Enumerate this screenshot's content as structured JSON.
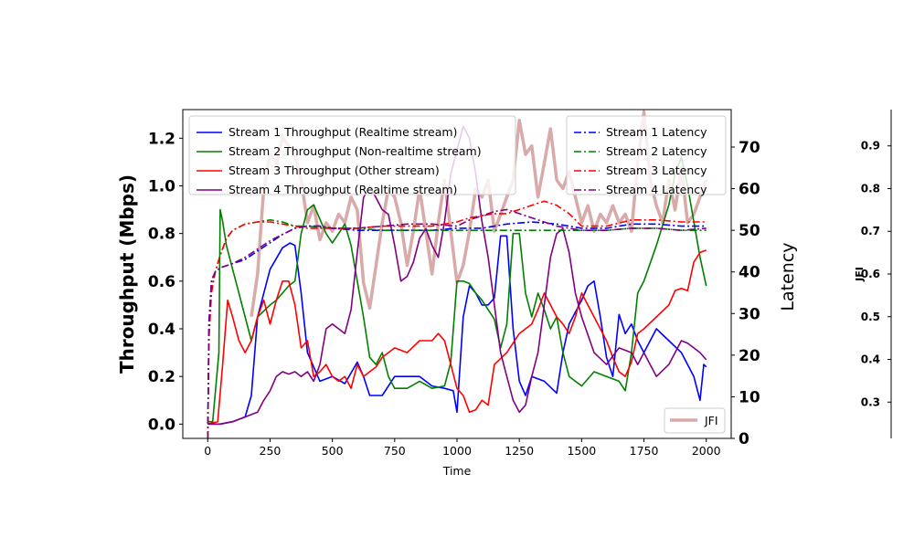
{
  "chart_data": {
    "type": "line",
    "title": "",
    "xlabel": "Time",
    "ylabel_left": "Throughput (Mbps)",
    "ylabel_right": "Latency",
    "ylabel_third": "JFI",
    "xlim": [
      -100,
      2100
    ],
    "ylim_left": [
      -0.06,
      1.32
    ],
    "ylim_right": [
      0,
      79
    ],
    "ylim_third": [
      0.215,
      0.985
    ],
    "x_ticks": [
      0,
      250,
      500,
      750,
      1000,
      1250,
      1500,
      1750,
      2000
    ],
    "y_ticks_left": [
      0.0,
      0.2,
      0.4,
      0.6,
      0.8,
      1.0,
      1.2
    ],
    "y_ticks_left_labels": [
      "0.0",
      "0.2",
      "0.4",
      "0.6",
      "0.8",
      "1.0",
      "1.2"
    ],
    "y_ticks_right": [
      0,
      10,
      20,
      30,
      40,
      50,
      60,
      70
    ],
    "y_ticks_third": [
      0.3,
      0.4,
      0.5,
      0.6,
      0.7,
      0.8,
      0.9
    ],
    "grid": false,
    "legend_left_position": "upper-left",
    "legend_right_position": "upper-right",
    "legend_jfi_position": "lower-right",
    "throughput_series": [
      {
        "name": "Stream 1 Throughput (Realtime stream)",
        "color": "#0000ff",
        "x": [
          0,
          50,
          100,
          150,
          175,
          200,
          250,
          300,
          330,
          350,
          375,
          400,
          450,
          500,
          550,
          600,
          625,
          650,
          700,
          750,
          800,
          850,
          900,
          950,
          985,
          1000,
          1025,
          1050,
          1075,
          1100,
          1125,
          1150,
          1175,
          1200,
          1225,
          1250,
          1275,
          1300,
          1350,
          1400,
          1425,
          1450,
          1500,
          1525,
          1550,
          1575,
          1600,
          1625,
          1650,
          1675,
          1700,
          1725,
          1750,
          1800,
          1850,
          1900,
          1950,
          1975,
          1990,
          2000
        ],
        "y": [
          0.0,
          0.0,
          0.01,
          0.03,
          0.12,
          0.45,
          0.65,
          0.74,
          0.76,
          0.75,
          0.55,
          0.3,
          0.18,
          0.2,
          0.17,
          0.26,
          0.2,
          0.12,
          0.12,
          0.2,
          0.2,
          0.2,
          0.16,
          0.15,
          0.14,
          0.05,
          0.45,
          0.58,
          0.55,
          0.5,
          0.5,
          0.53,
          0.79,
          0.79,
          0.4,
          0.18,
          0.12,
          0.2,
          0.18,
          0.13,
          0.3,
          0.42,
          0.52,
          0.58,
          0.6,
          0.45,
          0.28,
          0.2,
          0.46,
          0.38,
          0.42,
          0.35,
          0.3,
          0.4,
          0.35,
          0.3,
          0.2,
          0.1,
          0.25,
          0.24
        ]
      },
      {
        "name": "Stream 2 Throughput (Non-realtime stream)",
        "color": "#008000",
        "x": [
          0,
          20,
          45,
          50,
          60,
          75,
          100,
          125,
          150,
          175,
          200,
          250,
          275,
          300,
          325,
          350,
          375,
          400,
          425,
          450,
          475,
          500,
          525,
          550,
          575,
          600,
          625,
          650,
          675,
          700,
          725,
          750,
          800,
          850,
          900,
          950,
          975,
          1000,
          1025,
          1050,
          1075,
          1100,
          1125,
          1150,
          1175,
          1200,
          1225,
          1250,
          1275,
          1300,
          1325,
          1350,
          1375,
          1400,
          1425,
          1450,
          1475,
          1500,
          1550,
          1600,
          1650,
          1675,
          1700,
          1725,
          1750,
          1800,
          1850,
          1875,
          1900,
          1925,
          1950,
          1975,
          2000
        ],
        "y": [
          0.01,
          0.01,
          0.3,
          0.9,
          0.85,
          0.75,
          0.65,
          0.55,
          0.45,
          0.35,
          0.45,
          0.5,
          0.52,
          0.55,
          0.58,
          0.6,
          0.8,
          0.9,
          0.92,
          0.86,
          0.8,
          0.76,
          0.8,
          0.84,
          0.75,
          0.6,
          0.45,
          0.28,
          0.25,
          0.3,
          0.2,
          0.15,
          0.15,
          0.18,
          0.15,
          0.16,
          0.26,
          0.6,
          0.6,
          0.59,
          0.55,
          0.52,
          0.48,
          0.44,
          0.32,
          0.42,
          0.8,
          0.8,
          0.55,
          0.45,
          0.55,
          0.48,
          0.4,
          0.45,
          0.3,
          0.2,
          0.18,
          0.16,
          0.22,
          0.2,
          0.18,
          0.14,
          0.3,
          0.55,
          0.6,
          0.75,
          0.92,
          1.05,
          1.12,
          1.0,
          0.85,
          0.7,
          0.58
        ]
      },
      {
        "name": "Stream 3 Throughput (Other stream)",
        "color": "#ff0000",
        "x": [
          0,
          40,
          60,
          80,
          100,
          125,
          150,
          175,
          200,
          225,
          250,
          275,
          300,
          325,
          350,
          375,
          400,
          425,
          450,
          475,
          500,
          525,
          550,
          575,
          600,
          625,
          650,
          675,
          700,
          750,
          800,
          850,
          900,
          925,
          950,
          975,
          1000,
          1025,
          1050,
          1075,
          1100,
          1125,
          1150,
          1200,
          1250,
          1300,
          1325,
          1350,
          1375,
          1400,
          1425,
          1450,
          1475,
          1500,
          1550,
          1600,
          1625,
          1650,
          1675,
          1700,
          1725,
          1750,
          1800,
          1850,
          1875,
          1900,
          1925,
          1950,
          1975,
          2000
        ],
        "y": [
          0.0,
          0.01,
          0.25,
          0.52,
          0.45,
          0.35,
          0.3,
          0.35,
          0.45,
          0.52,
          0.42,
          0.52,
          0.6,
          0.6,
          0.5,
          0.32,
          0.35,
          0.2,
          0.22,
          0.25,
          0.2,
          0.18,
          0.2,
          0.15,
          0.25,
          0.2,
          0.22,
          0.24,
          0.28,
          0.32,
          0.3,
          0.35,
          0.35,
          0.38,
          0.35,
          0.25,
          0.15,
          0.12,
          0.05,
          0.06,
          0.1,
          0.08,
          0.25,
          0.3,
          0.38,
          0.42,
          0.48,
          0.55,
          0.5,
          0.45,
          0.42,
          0.38,
          0.45,
          0.55,
          0.45,
          0.35,
          0.28,
          0.22,
          0.2,
          0.26,
          0.38,
          0.4,
          0.45,
          0.5,
          0.56,
          0.57,
          0.56,
          0.68,
          0.72,
          0.73
        ]
      },
      {
        "name": "Stream 4 Throughput (Realtime stream)",
        "color": "#800080",
        "x": [
          0,
          50,
          100,
          125,
          150,
          175,
          200,
          225,
          250,
          275,
          300,
          325,
          350,
          375,
          400,
          425,
          450,
          475,
          500,
          525,
          550,
          575,
          600,
          625,
          650,
          675,
          700,
          725,
          750,
          775,
          800,
          825,
          850,
          875,
          900,
          925,
          950,
          975,
          1000,
          1025,
          1050,
          1075,
          1100,
          1125,
          1150,
          1175,
          1200,
          1225,
          1250,
          1275,
          1300,
          1325,
          1350,
          1375,
          1400,
          1425,
          1450,
          1475,
          1500,
          1550,
          1600,
          1650,
          1700,
          1725,
          1750,
          1800,
          1850,
          1875,
          1900,
          1925,
          1950,
          1975,
          2000
        ],
        "y": [
          0.0,
          0.0,
          0.01,
          0.02,
          0.03,
          0.04,
          0.05,
          0.1,
          0.14,
          0.2,
          0.22,
          0.21,
          0.22,
          0.2,
          0.22,
          0.18,
          0.25,
          0.4,
          0.42,
          0.4,
          0.38,
          0.48,
          0.72,
          0.95,
          1.0,
          0.95,
          0.9,
          0.88,
          0.75,
          0.6,
          0.62,
          0.68,
          0.78,
          0.82,
          0.75,
          0.7,
          0.85,
          1.05,
          1.15,
          1.25,
          1.2,
          1.05,
          0.85,
          0.7,
          0.5,
          0.3,
          0.2,
          0.1,
          0.05,
          0.08,
          0.2,
          0.3,
          0.5,
          0.7,
          0.8,
          0.82,
          0.72,
          0.55,
          0.45,
          0.3,
          0.25,
          0.32,
          0.3,
          0.25,
          0.3,
          0.2,
          0.25,
          0.3,
          0.35,
          0.34,
          0.32,
          0.3,
          0.27
        ]
      }
    ],
    "latency_series": [
      {
        "name": "Stream 1 Latency",
        "color": "#0000ff",
        "x": [
          0,
          5,
          15,
          30,
          50,
          100,
          150,
          200,
          250,
          300,
          350,
          400,
          450,
          500,
          600,
          700,
          800,
          900,
          1000,
          1100,
          1200,
          1300,
          1400,
          1500,
          1600,
          1700,
          1800,
          1900,
          2000
        ],
        "y": [
          0,
          28,
          38,
          40,
          41,
          42,
          43,
          45,
          47,
          49,
          50.5,
          51,
          51,
          50.5,
          50,
          50,
          50,
          50,
          50.5,
          50.5,
          51.5,
          52,
          51.5,
          50.5,
          50.5,
          51.5,
          51.5,
          51,
          51
        ]
      },
      {
        "name": "Stream 2 Latency",
        "color": "#008000",
        "x": [
          0,
          5,
          15,
          30,
          50,
          75,
          100,
          150,
          200,
          250,
          300,
          350,
          400,
          500,
          600,
          700,
          800,
          900,
          1000,
          1100,
          1200,
          1300,
          1400,
          1500,
          1600,
          1700,
          1800,
          1900,
          2000
        ],
        "y": [
          0,
          25,
          36,
          40,
          44,
          48,
          50,
          51.5,
          52,
          52.5,
          52,
          51,
          51,
          50.5,
          50.5,
          50,
          50,
          50,
          50,
          50,
          50,
          50,
          50,
          50,
          50,
          50.5,
          50.5,
          50,
          50
        ]
      },
      {
        "name": "Stream 3 Latency",
        "color": "#ff0000",
        "x": [
          0,
          5,
          15,
          30,
          50,
          75,
          100,
          150,
          200,
          250,
          300,
          350,
          400,
          450,
          500,
          600,
          700,
          800,
          900,
          1000,
          1050,
          1100,
          1150,
          1200,
          1250,
          1300,
          1350,
          1400,
          1450,
          1500,
          1600,
          1700,
          1800,
          1900,
          2000
        ],
        "y": [
          0,
          24,
          35,
          40,
          44,
          48,
          50,
          51.5,
          52,
          52,
          51.5,
          51,
          50.5,
          50.5,
          50.5,
          50.5,
          51,
          51,
          51,
          52,
          53,
          53.5,
          54,
          54,
          55,
          56,
          57,
          56,
          54,
          51,
          51,
          52.5,
          52.5,
          52,
          52
        ]
      },
      {
        "name": "Stream 4 Latency",
        "color": "#800080",
        "x": [
          0,
          5,
          15,
          30,
          50,
          100,
          150,
          200,
          250,
          300,
          350,
          400,
          450,
          500,
          600,
          700,
          800,
          900,
          1000,
          1050,
          1100,
          1150,
          1200,
          1250,
          1300,
          1400,
          1500,
          1600,
          1700,
          1800,
          1900,
          2000
        ],
        "y": [
          0,
          27,
          38,
          40,
          41,
          42,
          43.5,
          45.5,
          47.5,
          49,
          50.5,
          51,
          51,
          50.5,
          50.5,
          51,
          51.5,
          51.5,
          51,
          52.5,
          53.5,
          54.5,
          55,
          54,
          53,
          51,
          50,
          50,
          50.5,
          50.5,
          50,
          50.5
        ]
      }
    ],
    "jfi_series": {
      "name": "JFI",
      "color": "#d9aaaa",
      "x": [
        175,
        200,
        225,
        250,
        275,
        300,
        325,
        350,
        375,
        400,
        425,
        450,
        475,
        500,
        525,
        550,
        575,
        600,
        625,
        650,
        675,
        700,
        725,
        750,
        775,
        800,
        825,
        850,
        875,
        900,
        925,
        950,
        975,
        1000,
        1025,
        1050,
        1075,
        1100,
        1125,
        1150,
        1175,
        1200,
        1225,
        1250,
        1275,
        1300,
        1325,
        1350,
        1375,
        1400,
        1425,
        1450,
        1475,
        1500,
        1525,
        1550,
        1575,
        1600,
        1625,
        1650,
        1675,
        1700,
        1725,
        1750,
        1775,
        1800,
        1825,
        1850,
        1875,
        1900,
        1925,
        1950,
        1975,
        2000
      ],
      "y": [
        0.5,
        0.6,
        0.8,
        0.88,
        0.86,
        0.92,
        0.9,
        0.88,
        0.82,
        0.72,
        0.76,
        0.68,
        0.72,
        0.7,
        0.74,
        0.72,
        0.78,
        0.75,
        0.58,
        0.52,
        0.62,
        0.72,
        0.8,
        0.78,
        0.72,
        0.62,
        0.7,
        0.8,
        0.7,
        0.6,
        0.72,
        0.82,
        0.7,
        0.58,
        0.62,
        0.7,
        0.8,
        0.78,
        0.82,
        0.7,
        0.74,
        0.78,
        0.82,
        0.96,
        0.88,
        0.9,
        0.78,
        0.86,
        0.94,
        0.82,
        0.8,
        0.84,
        0.78,
        0.72,
        0.76,
        0.7,
        0.74,
        0.72,
        0.76,
        0.72,
        0.74,
        0.7,
        0.86,
        0.98,
        0.82,
        0.76,
        0.72,
        0.82,
        0.75,
        0.85,
        0.72,
        0.74,
        0.78,
        0.82
      ]
    }
  }
}
